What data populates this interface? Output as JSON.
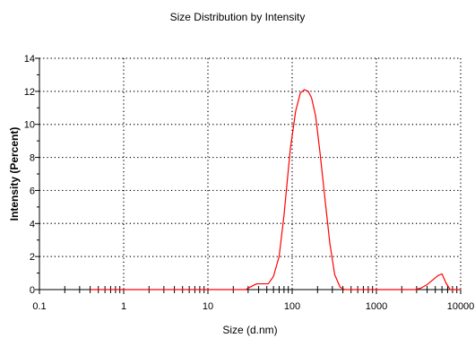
{
  "chart_data": {
    "type": "line",
    "title": "Size Distribution by Intensity",
    "xlabel": "Size (d.nm)",
    "ylabel": "Intensity (Percent)",
    "xscale": "log",
    "xlim": [
      0.1,
      10000
    ],
    "ylim": [
      0,
      14
    ],
    "x_ticks": [
      0.1,
      1,
      10,
      100,
      1000,
      10000
    ],
    "x_tick_labels": [
      "0.1",
      "1",
      "10",
      "100",
      "1000",
      "10000"
    ],
    "y_ticks": [
      0,
      2,
      4,
      6,
      8,
      10,
      12,
      14
    ],
    "y_tick_labels": [
      "0",
      "2",
      "4",
      "6",
      "8",
      "10",
      "12",
      "14"
    ],
    "grid": true,
    "series_color": "#ff0000",
    "series": [
      {
        "x": [
          0.4,
          20,
          28,
          33,
          38,
          45,
          52,
          60,
          70,
          80,
          95,
          110,
          125,
          140,
          155,
          170,
          190,
          215,
          245,
          280,
          320,
          370,
          420,
          480,
          2900,
          3400,
          4000,
          4700,
          5400,
          6000,
          6700,
          7500,
          10000
        ],
        "y": [
          0,
          0,
          0,
          0.2,
          0.35,
          0.35,
          0.35,
          0.8,
          2.0,
          4.5,
          8.5,
          10.8,
          11.9,
          12.1,
          12.0,
          11.6,
          10.5,
          8.2,
          5.5,
          2.8,
          0.9,
          0.15,
          0,
          0,
          0,
          0.1,
          0.3,
          0.6,
          0.85,
          0.95,
          0.4,
          0,
          0
        ]
      }
    ]
  }
}
